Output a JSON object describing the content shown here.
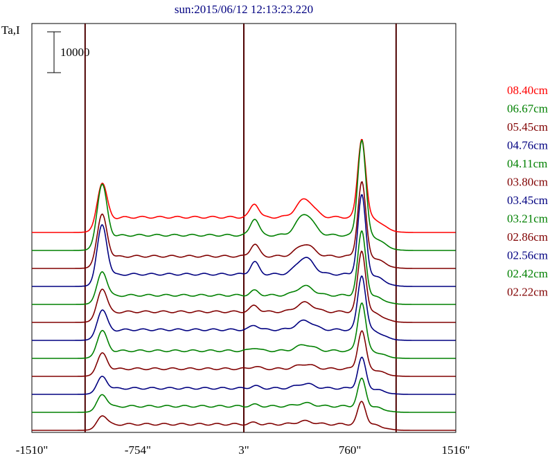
{
  "chart_data": {
    "type": "line",
    "title": "sun:2015/06/12 12:13:23.220",
    "ylabel": "Ta,I",
    "scale_bar_label": "10000",
    "x_tick_labels": [
      "-1510\"",
      "-754\"",
      "3\"",
      "760\"",
      "1516\""
    ],
    "x_ticks": [
      -1510,
      -754,
      3,
      760,
      1516
    ],
    "xlim": [
      -1510,
      1516
    ],
    "vertical_lines": [
      -1130,
      3,
      1090
    ],
    "series": [
      {
        "name": "08.40cm",
        "color": "#ff0000",
        "offset": 11,
        "profile": {
          "base": 1.0,
          "slope": 0.0,
          "left": 2.8,
          "c1": 0.9,
          "c2": 1.2,
          "right": 5.2
        }
      },
      {
        "name": "06.67cm",
        "color": "#008000",
        "offset": 10,
        "profile": {
          "base": 1.0,
          "slope": 0.0,
          "left": 3.9,
          "c1": 1.1,
          "c2": 1.4,
          "right": 6.3
        }
      },
      {
        "name": "05.45cm",
        "color": "#800000",
        "offset": 9,
        "profile": {
          "base": 0.8,
          "slope": 0.0,
          "left": 3.2,
          "c1": 0.8,
          "c2": 0.8,
          "right": 4.9
        }
      },
      {
        "name": "04.76cm",
        "color": "#000080",
        "offset": 8,
        "profile": {
          "base": 0.8,
          "slope": 0.0,
          "left": 3.7,
          "c1": 0.8,
          "c2": 1.1,
          "right": 5.2
        }
      },
      {
        "name": "04.11cm",
        "color": "#008000",
        "offset": 7,
        "profile": {
          "base": 0.6,
          "slope": 0.0,
          "left": 1.9,
          "c1": 0.3,
          "c2": 0.6,
          "right": 4.2
        }
      },
      {
        "name": "03.80cm",
        "color": "#800000",
        "offset": 6,
        "profile": {
          "base": 0.7,
          "slope": 0.0,
          "left": 1.9,
          "c1": 0.4,
          "c2": 0.6,
          "right": 4.0
        }
      },
      {
        "name": "03.45cm",
        "color": "#000080",
        "offset": 5,
        "profile": {
          "base": 0.7,
          "slope": 0.0,
          "left": 1.7,
          "c1": 0.3,
          "c2": 0.6,
          "right": 3.6
        }
      },
      {
        "name": "03.21cm",
        "color": "#008000",
        "offset": 4,
        "profile": {
          "base": 0.5,
          "slope": 0.0,
          "left": 1.6,
          "c1": 0.2,
          "c2": 0.4,
          "right": 3.2
        }
      },
      {
        "name": "02.86cm",
        "color": "#800000",
        "offset": 3,
        "profile": {
          "base": 0.5,
          "slope": 0.0,
          "left": 1.3,
          "c1": 0.15,
          "c2": 0.3,
          "right": 2.5
        }
      },
      {
        "name": "02.56cm",
        "color": "#000080",
        "offset": 2,
        "profile": {
          "base": 0.4,
          "slope": 0.0,
          "left": 1.0,
          "c1": 0.15,
          "c2": 0.3,
          "right": 2.0
        }
      },
      {
        "name": "02.42cm",
        "color": "#008000",
        "offset": 1,
        "profile": {
          "base": 0.4,
          "slope": 0.0,
          "left": 1.0,
          "c1": 0.1,
          "c2": 0.2,
          "right": 1.8
        }
      },
      {
        "name": "02.22cm",
        "color": "#800000",
        "offset": 0,
        "profile": {
          "base": 0.4,
          "slope": 0.0,
          "left": 0.8,
          "c1": 0.1,
          "c2": 0.2,
          "right": 1.5
        }
      }
    ]
  }
}
